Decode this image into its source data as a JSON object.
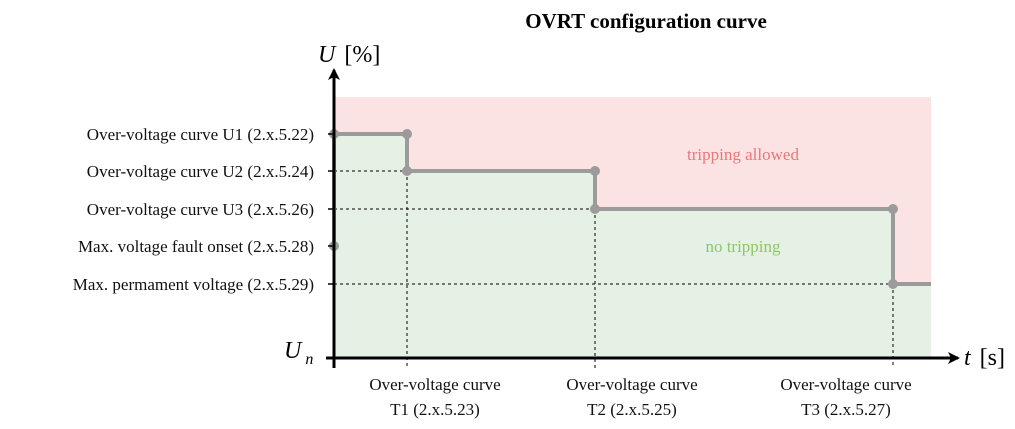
{
  "title": "OVRT configuration curve",
  "y_axis": {
    "symbol": "U",
    "unit": "[%]",
    "origin_label": "U",
    "origin_sub": "n"
  },
  "x_axis": {
    "symbol": "t",
    "unit": "[s]"
  },
  "y_levels": [
    {
      "id": "u1",
      "label": "Over-voltage curve U1 (2.x.5.22)"
    },
    {
      "id": "u2",
      "label": "Over-voltage curve U2 (2.x.5.24)"
    },
    {
      "id": "u3",
      "label": "Over-voltage curve U3 (2.x.5.26)"
    },
    {
      "id": "fault",
      "label": "Max. voltage fault onset (2.x.5.28)"
    },
    {
      "id": "perm",
      "label": "Max. permament voltage (2.x.5.29)"
    }
  ],
  "x_levels": [
    {
      "id": "t1",
      "line1": "Over-voltage curve",
      "line2": "T1 (2.x.5.23)"
    },
    {
      "id": "t2",
      "line1": "Over-voltage curve",
      "line2": "T2 (2.x.5.25)"
    },
    {
      "id": "t3",
      "line1": "Over-voltage curve",
      "line2": "T3 (2.x.5.27)"
    }
  ],
  "zones": {
    "upper": "tripping allowed",
    "lower": "no tripping"
  },
  "colors": {
    "upper_zone": "#fbe3e4",
    "lower_zone": "#e6f1e5",
    "curve": "#9b9b9b",
    "upper_text": "#e8787a",
    "lower_text": "#8cc66a"
  }
}
